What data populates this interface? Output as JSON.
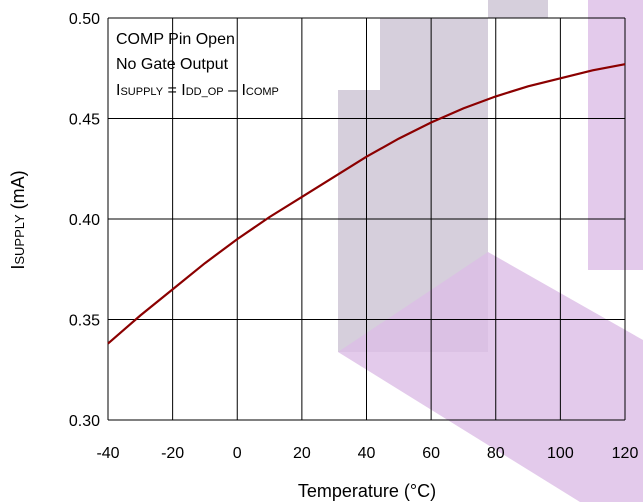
{
  "colors": {
    "series": "#8b0000",
    "grid": "#000000",
    "watermark_gray": "#c8bfd0",
    "watermark_purple": "#dcbde6"
  },
  "chart_data": {
    "type": "line",
    "xlabel": "Temperature (°C)",
    "ylabel": {
      "main": "I",
      "sub": "SUPPLY",
      "unit": " (mA)"
    },
    "xlim": [
      -40,
      120
    ],
    "ylim": [
      0.3,
      0.5
    ],
    "xticks": [
      -40,
      -20,
      0,
      20,
      40,
      60,
      80,
      100,
      120
    ],
    "yticks": [
      0.3,
      0.35,
      0.4,
      0.45,
      0.5
    ],
    "xtick_labels": [
      "-40",
      "-20",
      "0",
      "20",
      "40",
      "60",
      "80",
      "100",
      "120"
    ],
    "ytick_labels": [
      "0.30",
      "0.35",
      "0.40",
      "0.45",
      "0.50"
    ],
    "grid": true,
    "annotations": {
      "line1": "COMP Pin Open",
      "line2": "No Gate Output",
      "eq": {
        "i1": "I",
        "s1": "SUPPLY",
        "eq": " = ",
        "i2": "I",
        "s2": "DD_OP",
        "minus": " – ",
        "i3": "I",
        "s3": "COMP"
      }
    },
    "series": [
      {
        "x": [
          -40,
          -30,
          -20,
          -10,
          0,
          10,
          20,
          30,
          40,
          50,
          60,
          70,
          80,
          90,
          100,
          110,
          120
        ],
        "y": [
          0.338,
          0.352,
          0.365,
          0.378,
          0.39,
          0.401,
          0.411,
          0.421,
          0.431,
          0.44,
          0.448,
          0.455,
          0.461,
          0.466,
          0.47,
          0.474,
          0.477
        ]
      }
    ]
  }
}
